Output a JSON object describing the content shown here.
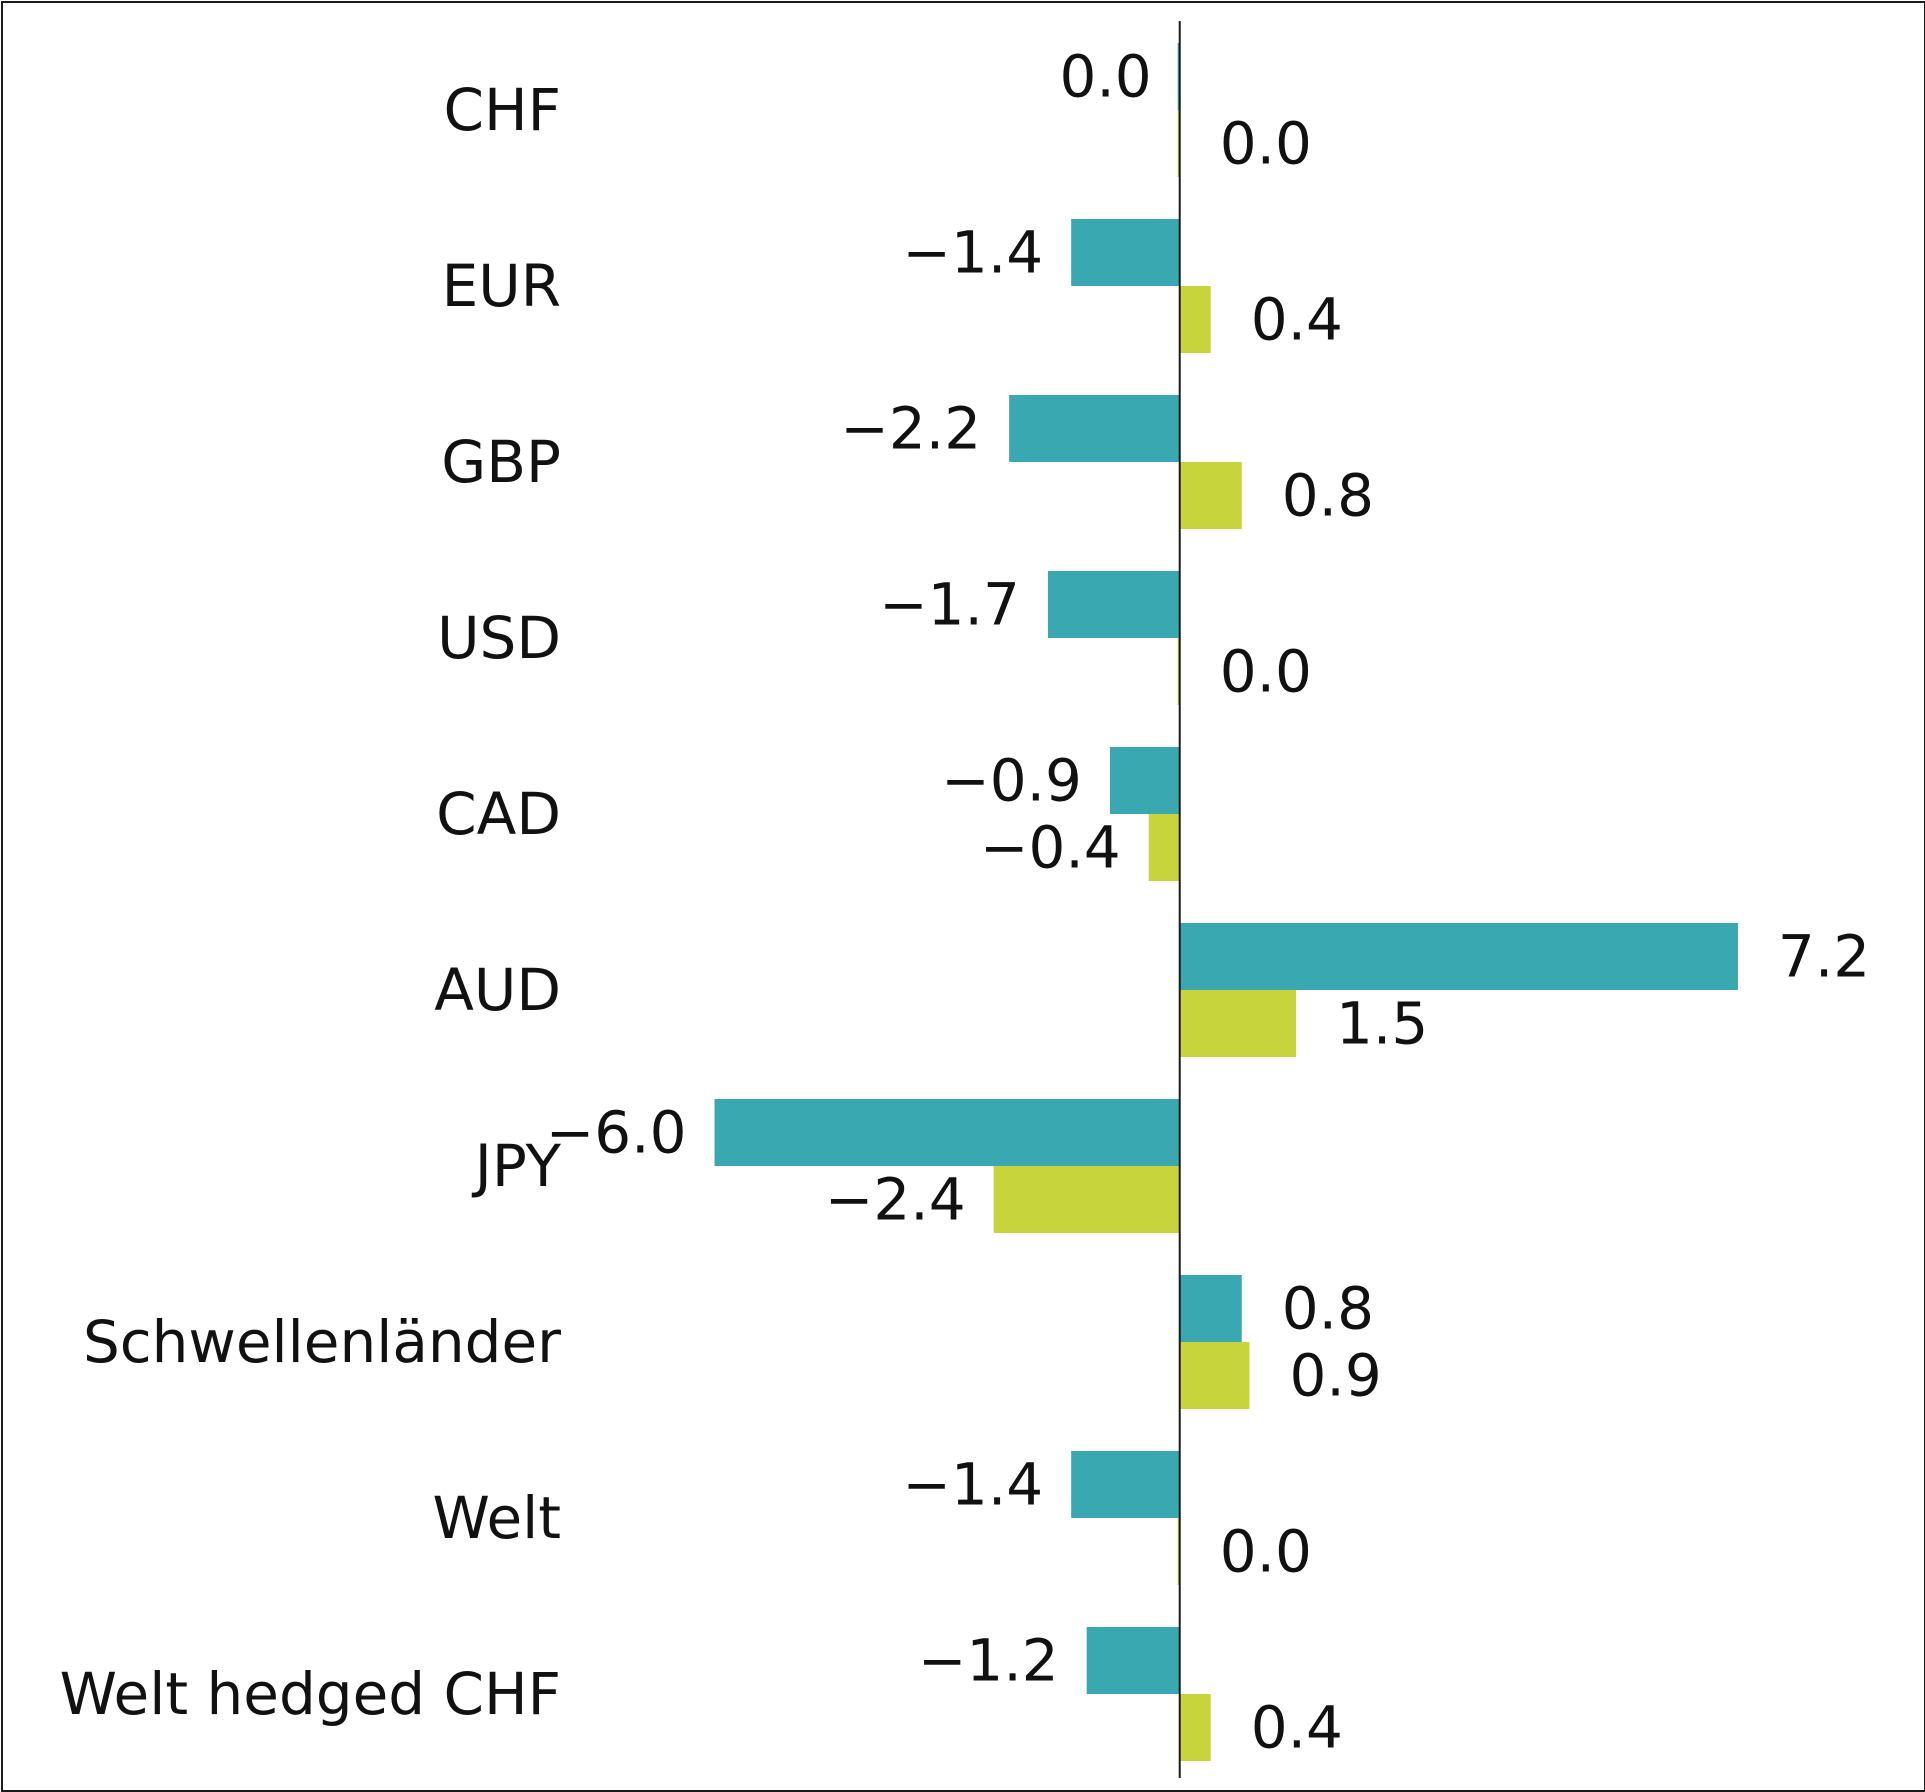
{
  "colors": {
    "series_a": "#3aa8b0",
    "series_b": "#c8d43c",
    "axis": "#1a1a1a",
    "text": "#111111",
    "background": "#ffffff"
  },
  "chart_data": {
    "type": "bar",
    "orientation": "horizontal",
    "categories": [
      "CHF",
      "EUR",
      "GBP",
      "USD",
      "CAD",
      "AUD",
      "JPY",
      "Schwellenländer",
      "Welt",
      "Welt hedged CHF"
    ],
    "series": [
      {
        "values": [
          0.0,
          -1.4,
          -2.2,
          -1.7,
          -0.9,
          7.2,
          -6.0,
          0.8,
          -1.4,
          -1.2
        ]
      },
      {
        "values": [
          0.0,
          0.4,
          0.8,
          0.0,
          -0.4,
          1.5,
          -2.4,
          0.9,
          0.0,
          0.4
        ]
      }
    ],
    "value_labels": [
      [
        "0.0",
        "−1.4",
        "−2.2",
        "−1.7",
        "−0.9",
        "7.2",
        "−6.0",
        "0.8",
        "−1.4",
        "−1.2"
      ],
      [
        "0.0",
        "0.4",
        "0.8",
        "0.0",
        "−0.4",
        "1.5",
        "−2.4",
        "0.9",
        "0.0",
        "0.4"
      ]
    ],
    "xlim": [
      -7.4,
      9.6
    ],
    "grid": false,
    "legend": "none",
    "title": "",
    "xlabel": "",
    "ylabel": ""
  }
}
